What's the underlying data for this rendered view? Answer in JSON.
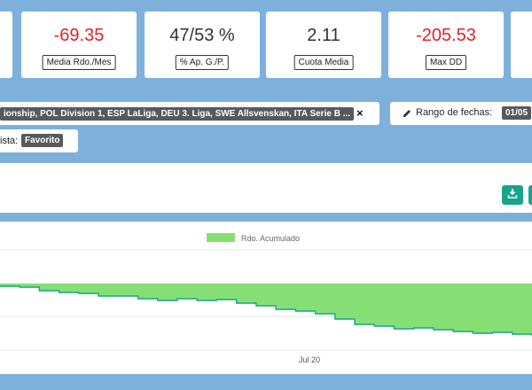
{
  "stats": [
    {
      "value": "-69.35",
      "label": "Media Rdo./Mes",
      "negative": true
    },
    {
      "value": "47/53 %",
      "label": "% Ap. G./P.",
      "negative": false
    },
    {
      "value": "2.11",
      "label": "Cuota Media",
      "negative": false
    },
    {
      "value": "-205.53",
      "label": "Max DD",
      "negative": true
    }
  ],
  "filters": {
    "leagues_text": "ionship, POL Division 1, ESP LaLiga, DEU 3. Liga, SWE Allsvenskan, ITA Serie B ...",
    "remove_symbol": "×",
    "date_label": "Rango de fechas:",
    "date_value": "01/05",
    "list_label": "ista:",
    "list_value": "Favorito"
  },
  "icons": {
    "edit": "pencil-icon",
    "download": "download-icon"
  },
  "chart_data": {
    "type": "area",
    "series": [
      {
        "name": "Rdo. Acumulado",
        "color": "#86df75",
        "values": [
          -3,
          -4,
          -8,
          -10,
          -11,
          -14,
          -14,
          -17,
          -19,
          -17,
          -19,
          -18,
          -22,
          -25,
          -29,
          -31,
          -34,
          -40,
          -46,
          -48,
          -51,
          -50,
          -52,
          -54,
          -56,
          -55,
          -57,
          -59
        ]
      }
    ],
    "xlabels": [
      "Jul 20"
    ],
    "legend_position": "top-center",
    "grid": true
  }
}
